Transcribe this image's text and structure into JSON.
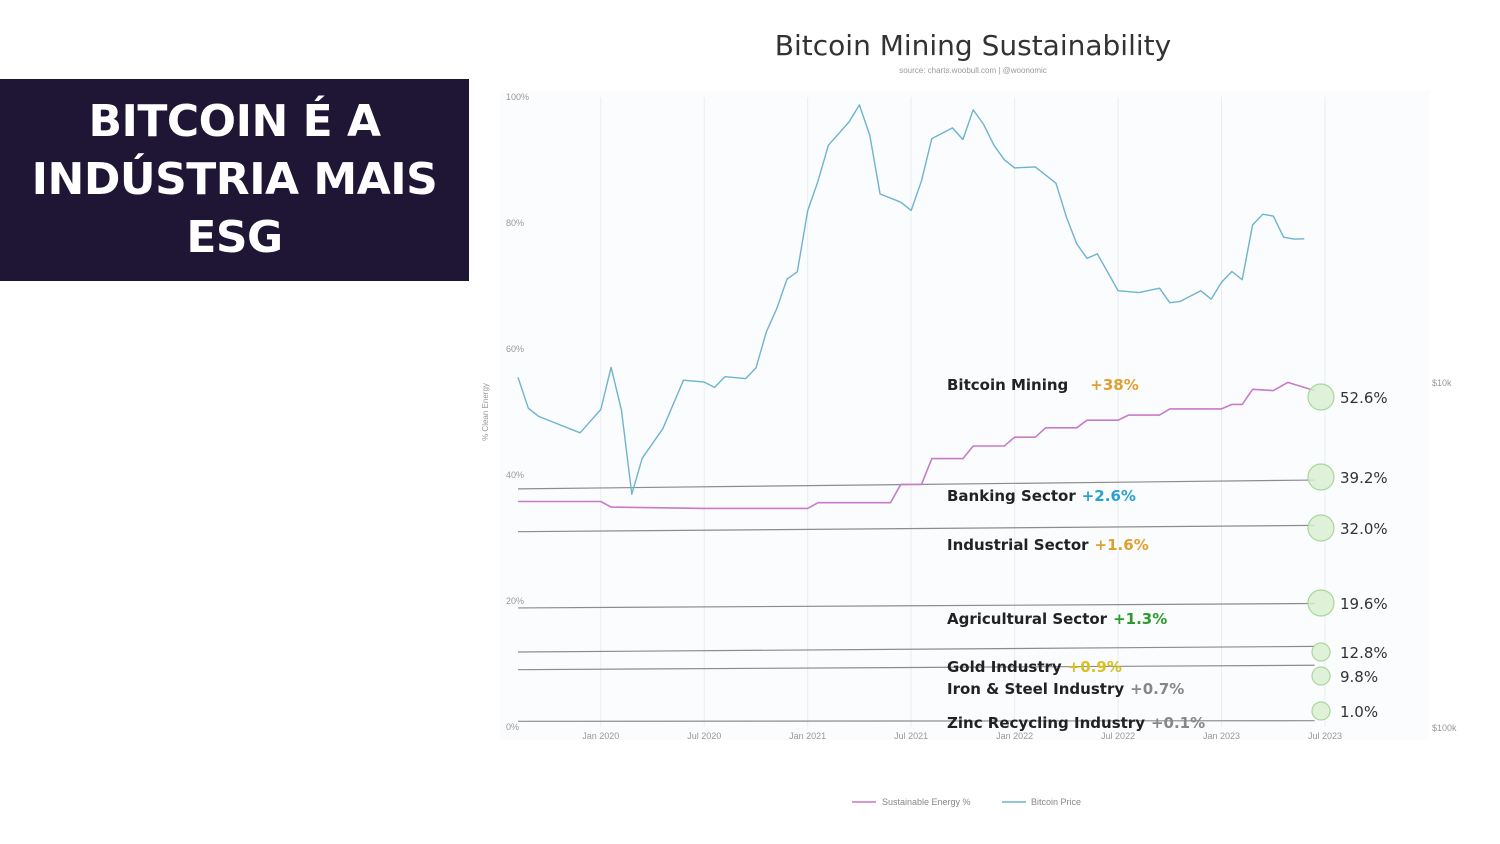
{
  "banner": {
    "lines": [
      "BITCOIN É A",
      "INDÚSTRIA MAIS",
      "ESG"
    ]
  },
  "colors": {
    "banner_bg": "#1f1535",
    "price_line": "#6fb3cf",
    "energy_line": "#c97ac9",
    "sector_line": "#8c8c8c",
    "marker_fill": "#d8efd0",
    "marker_stroke": "#a8d898",
    "orange": "#e0a030",
    "blue": "#2aa0d0",
    "green": "#2e9a2e",
    "gold": "#d8c020",
    "gray": "#888888"
  },
  "chart_data": {
    "type": "line",
    "title": "Bitcoin Mining Sustainability",
    "subtitle": "source: charts.woobull.com | @woonomic",
    "ylabel": "% Clean Energy",
    "yticks": [
      "0%",
      "20%",
      "40%",
      "60%",
      "80%",
      "100%"
    ],
    "ylim": [
      0,
      100
    ],
    "y2ticks": [
      "$10k",
      "$100k"
    ],
    "xticks": [
      "Jan 2020",
      "Jul 2020",
      "Jan 2021",
      "Jul 2021",
      "Jan 2022",
      "Jul 2022",
      "Jan 2023",
      "Jul 2023"
    ],
    "xlim": [
      2019.6,
      2023.5
    ],
    "legend": [
      "Sustainable Energy %",
      "Bitcoin Price"
    ],
    "legend_position": "bottom",
    "series": [
      {
        "name": "Sustainable Energy %",
        "points": [
          [
            2019.6,
            35.8
          ],
          [
            2020.0,
            35.8
          ],
          [
            2020.05,
            34.9
          ],
          [
            2020.5,
            34.7
          ],
          [
            2021.0,
            34.7
          ],
          [
            2021.05,
            35.6
          ],
          [
            2021.4,
            35.6
          ],
          [
            2021.45,
            38.5
          ],
          [
            2021.55,
            38.5
          ],
          [
            2021.6,
            42.6
          ],
          [
            2021.75,
            42.6
          ],
          [
            2021.8,
            44.6
          ],
          [
            2021.95,
            44.6
          ],
          [
            2022.0,
            46.0
          ],
          [
            2022.1,
            46.0
          ],
          [
            2022.15,
            47.5
          ],
          [
            2022.3,
            47.5
          ],
          [
            2022.35,
            48.7
          ],
          [
            2022.5,
            48.7
          ],
          [
            2022.55,
            49.5
          ],
          [
            2022.7,
            49.5
          ],
          [
            2022.75,
            50.5
          ],
          [
            2023.0,
            50.5
          ],
          [
            2023.05,
            51.2
          ],
          [
            2023.1,
            51.2
          ],
          [
            2023.15,
            53.6
          ],
          [
            2023.25,
            53.4
          ],
          [
            2023.32,
            54.7
          ],
          [
            2023.45,
            53.4
          ]
        ]
      },
      {
        "name": "Bitcoin Price",
        "points": [
          [
            2019.6,
            55.5
          ],
          [
            2019.65,
            52
          ],
          [
            2019.7,
            50
          ],
          [
            2019.8,
            48
          ],
          [
            2019.9,
            46
          ],
          [
            2020.0,
            49
          ],
          [
            2020.05,
            55
          ],
          [
            2020.1,
            52
          ],
          [
            2020.15,
            38
          ],
          [
            2020.2,
            43
          ],
          [
            2020.3,
            47
          ],
          [
            2020.4,
            54
          ],
          [
            2020.5,
            53
          ],
          [
            2020.55,
            56
          ],
          [
            2020.6,
            57
          ],
          [
            2020.7,
            56
          ],
          [
            2020.75,
            57
          ],
          [
            2020.8,
            62
          ],
          [
            2020.85,
            65
          ],
          [
            2020.9,
            69
          ],
          [
            2020.95,
            74
          ],
          [
            2021.0,
            83
          ],
          [
            2021.05,
            87
          ],
          [
            2021.1,
            92
          ],
          [
            2021.2,
            95
          ],
          [
            2021.25,
            97
          ],
          [
            2021.3,
            96
          ],
          [
            2021.35,
            86
          ],
          [
            2021.45,
            84
          ],
          [
            2021.5,
            82
          ],
          [
            2021.55,
            86
          ],
          [
            2021.6,
            92
          ],
          [
            2021.7,
            93
          ],
          [
            2021.75,
            95
          ],
          [
            2021.8,
            99
          ],
          [
            2021.85,
            96
          ],
          [
            2021.9,
            92
          ],
          [
            2021.95,
            89
          ],
          [
            2022.0,
            87
          ],
          [
            2022.1,
            91
          ],
          [
            2022.15,
            89
          ],
          [
            2022.2,
            87
          ],
          [
            2022.25,
            81
          ],
          [
            2022.3,
            76
          ],
          [
            2022.35,
            73
          ],
          [
            2022.4,
            73
          ],
          [
            2022.5,
            71
          ],
          [
            2022.6,
            70
          ],
          [
            2022.7,
            70
          ],
          [
            2022.75,
            67
          ],
          [
            2022.8,
            66.5
          ],
          [
            2022.9,
            67.5
          ],
          [
            2022.95,
            70
          ],
          [
            2023.0,
            72
          ],
          [
            2023.05,
            73
          ],
          [
            2023.1,
            71
          ],
          [
            2023.15,
            79
          ],
          [
            2023.2,
            80
          ],
          [
            2023.25,
            79
          ],
          [
            2023.3,
            79.5
          ],
          [
            2023.35,
            78.5
          ],
          [
            2023.4,
            77.5
          ]
        ]
      }
    ],
    "sectors": [
      {
        "name": "Bitcoin Mining",
        "change": "+38%",
        "value": "52.6%",
        "change_color": "#e0a030"
      },
      {
        "name": "Banking Sector",
        "change": "+2.6%",
        "value": "39.2%",
        "change_color": "#2aa0d0"
      },
      {
        "name": "Industrial Sector",
        "change": "+1.6%",
        "value": "32.0%",
        "change_color": "#e0a030"
      },
      {
        "name": "Agricultural Sector",
        "change": "+1.3%",
        "value": "19.6%",
        "change_color": "#2e9a2e"
      },
      {
        "name": "Gold Industry",
        "change": "+0.9%",
        "value": "12.8%",
        "change_color": "#d8c020"
      },
      {
        "name": "Iron & Steel Industry",
        "change": "+0.7%",
        "value": "9.8%",
        "change_color": "#888888"
      },
      {
        "name": "Zinc Recycling Industry",
        "change": "+0.1%",
        "value": "1.0%",
        "change_color": "#888888"
      }
    ]
  }
}
